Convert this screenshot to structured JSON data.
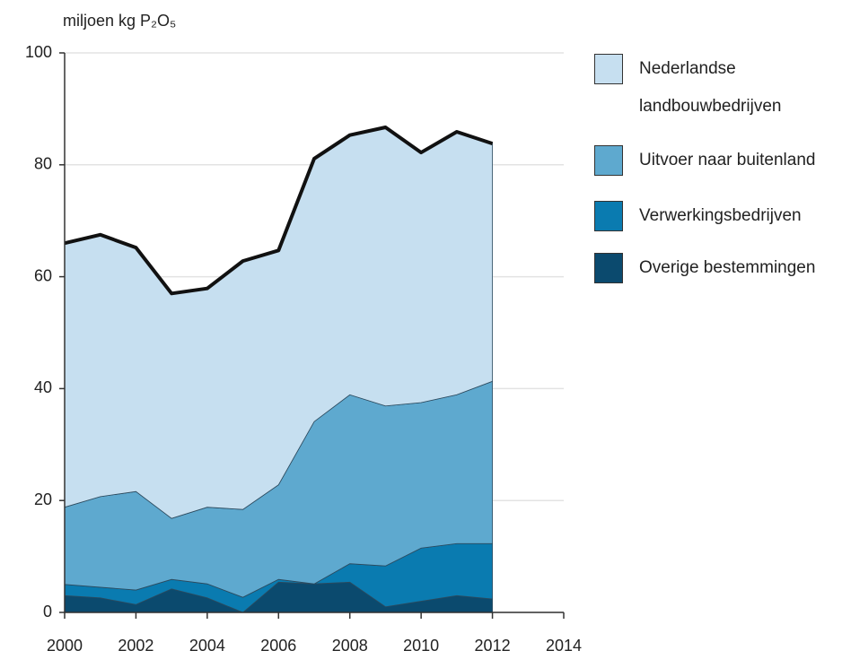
{
  "chart_data": {
    "type": "area",
    "stacked": true,
    "ylabel": "miljoen kg P₂O₅",
    "x": [
      2000,
      2001,
      2002,
      2003,
      2004,
      2005,
      2006,
      2007,
      2008,
      2009,
      2010,
      2011,
      2012
    ],
    "series": [
      {
        "name": "Overige bestemmingen",
        "color": "#0b4a6e",
        "values": [
          3.0,
          2.6,
          1.4,
          4.2,
          2.6,
          0,
          5.4,
          5.1,
          5.4,
          1.0,
          2.0,
          3.0,
          2.4
        ]
      },
      {
        "name": "Verwerkingsbedrijven",
        "color": "#0a7bb0",
        "values": [
          2.0,
          1.9,
          2.6,
          1.7,
          2.5,
          2.7,
          0.5,
          0,
          3.3,
          7.3,
          9.5,
          9.3,
          9.9
        ]
      },
      {
        "name": "Uitvoer naar buitenland",
        "color": "#5ea9cf",
        "values": [
          13.8,
          16.2,
          17.6,
          10.9,
          13.7,
          15.7,
          16.9,
          29.0,
          30.2,
          28.6,
          26.0,
          26.6,
          29.0
        ]
      },
      {
        "name": "Nederlandse landbouwbedrijven",
        "color": "#c6dff0",
        "values": [
          47.2,
          46.8,
          43.6,
          40.2,
          39.1,
          44.4,
          41.9,
          47.0,
          46.4,
          49.8,
          44.7,
          47.0,
          42.5
        ]
      }
    ],
    "xlim": [
      2000,
      2014
    ],
    "xticks": [
      2000,
      2002,
      2004,
      2006,
      2008,
      2010,
      2012,
      2014
    ],
    "ylim": [
      0,
      100
    ],
    "yticks": [
      0,
      20,
      40,
      60,
      80,
      100
    ],
    "grid": true,
    "legend": "right"
  }
}
